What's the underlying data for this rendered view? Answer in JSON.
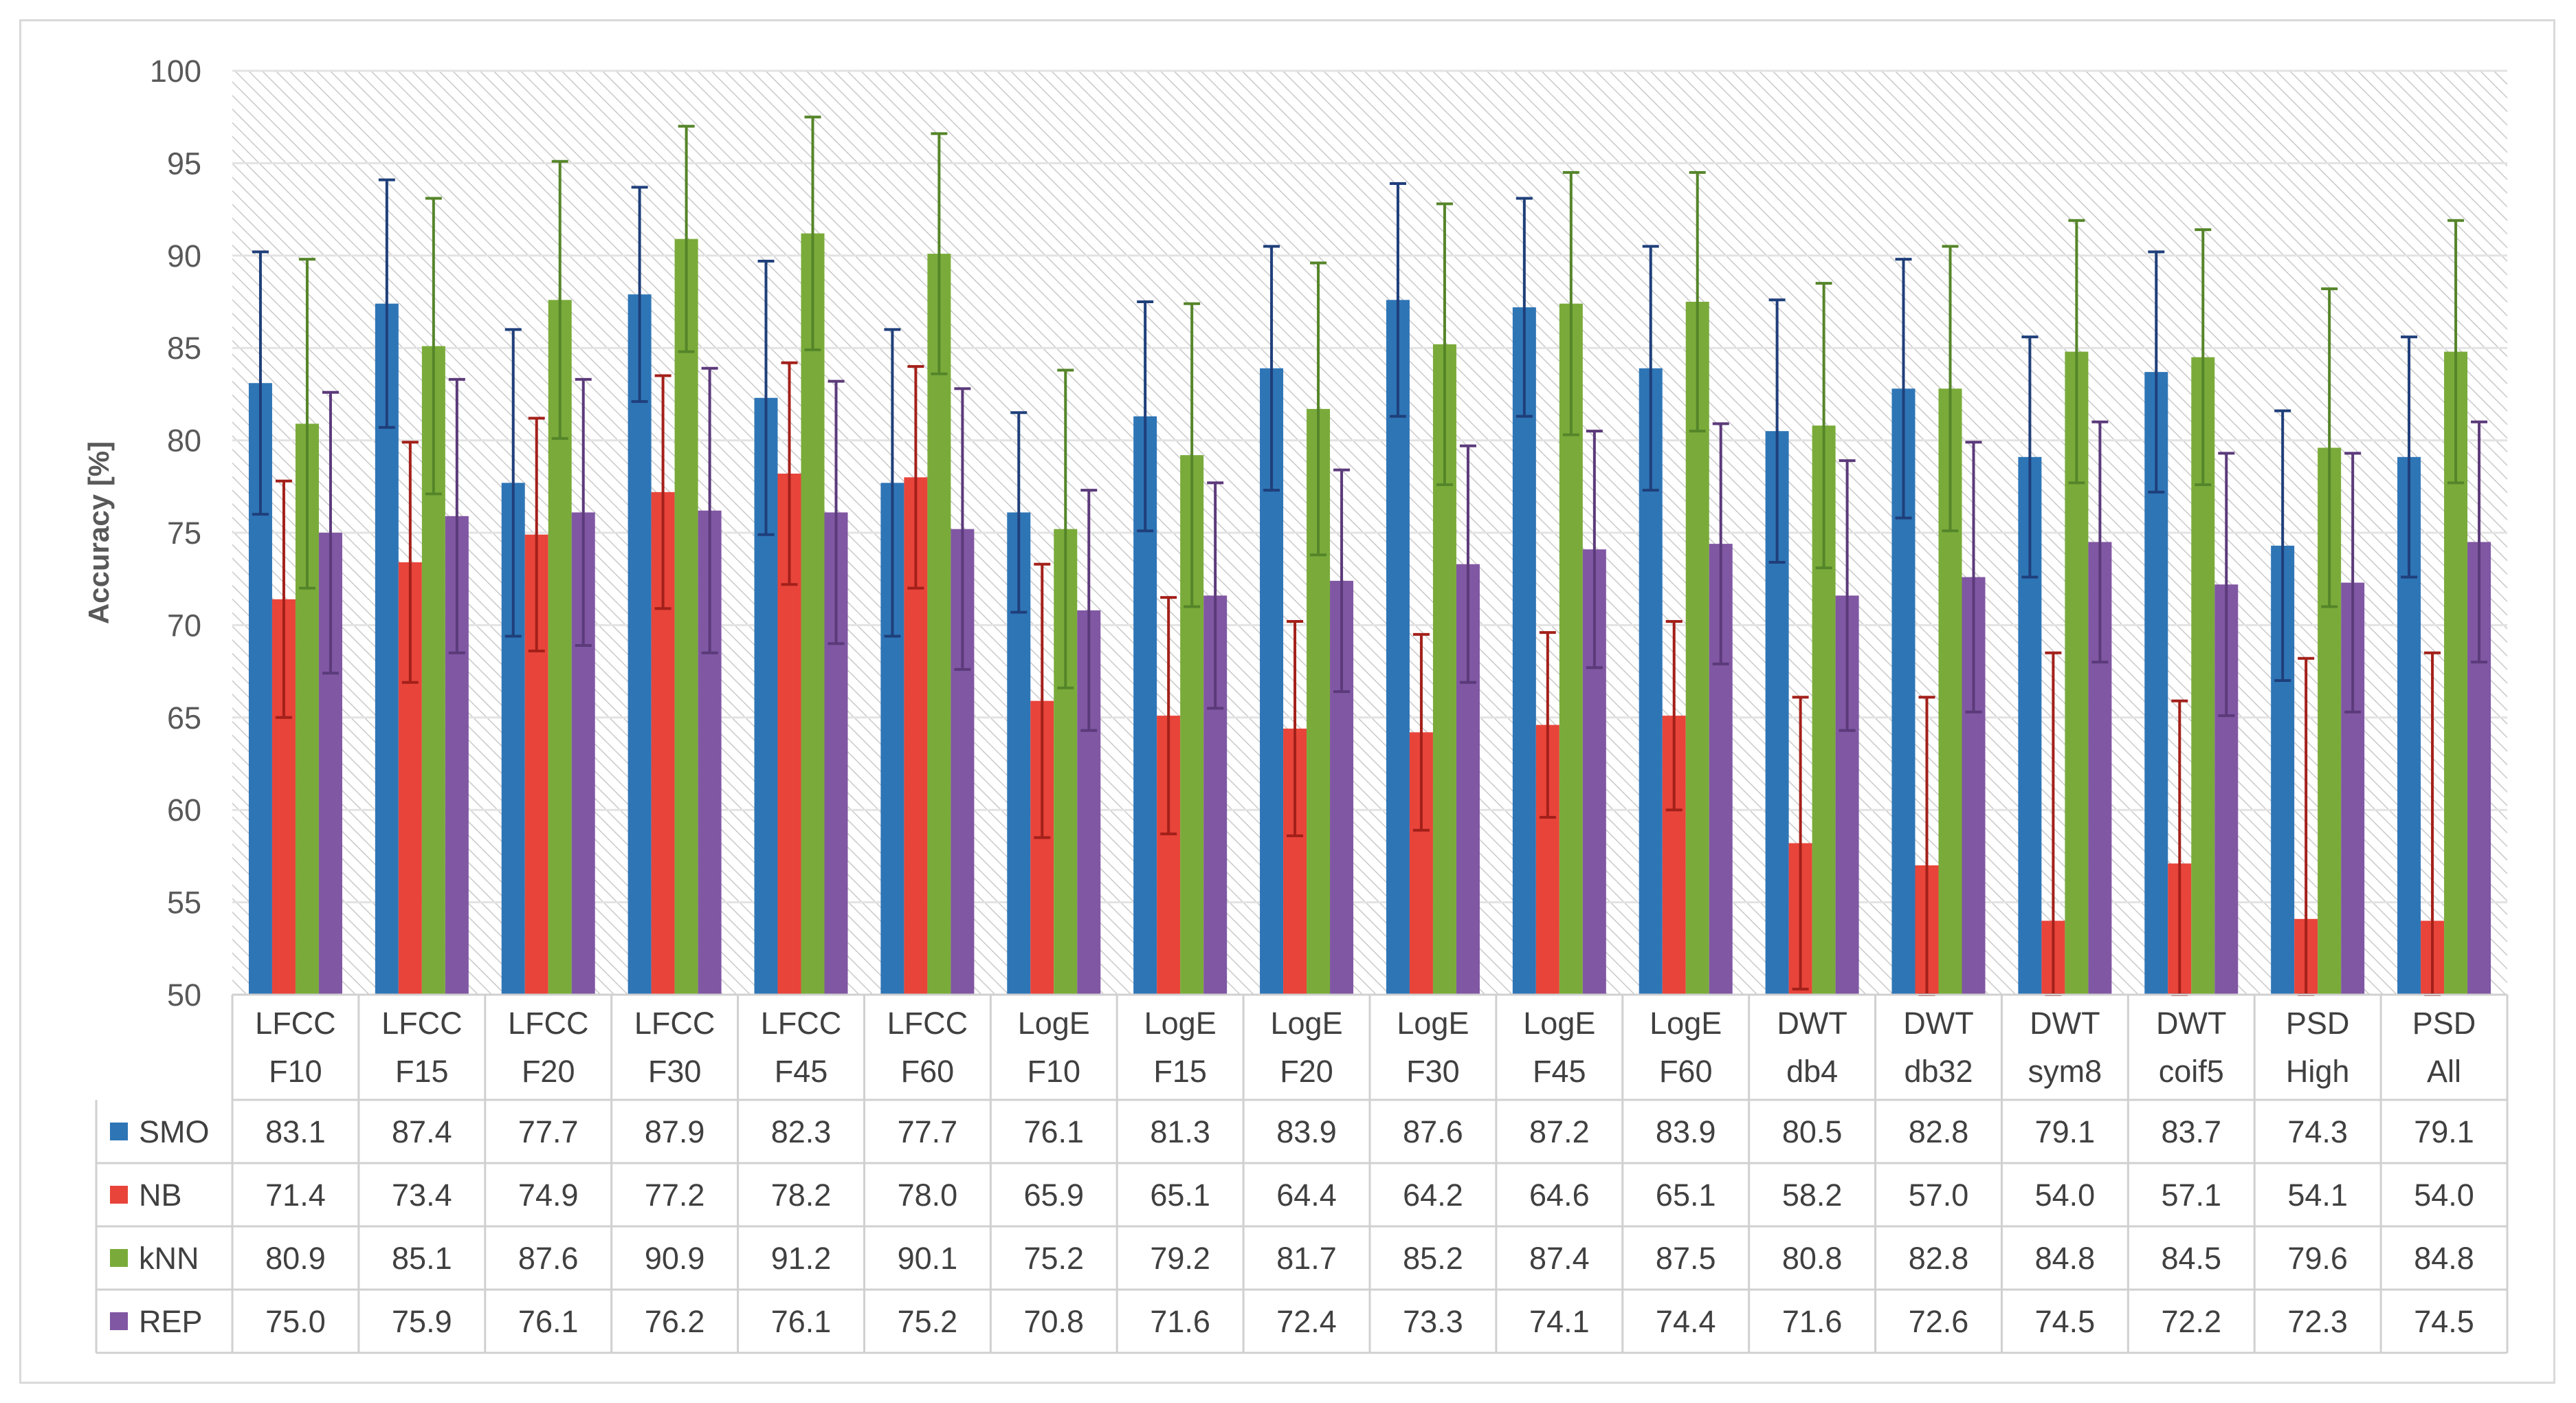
{
  "chart_data": {
    "type": "bar",
    "title": "",
    "xlabel": "",
    "ylabel": "Accuracy [%]",
    "ylim": [
      50,
      100
    ],
    "yticks": [
      "50",
      "55",
      "60",
      "65",
      "70",
      "75",
      "80",
      "85",
      "90",
      "95",
      "100"
    ],
    "grid": true,
    "legend_position": "data-table-left",
    "categories": [
      [
        "LFCC",
        "F10"
      ],
      [
        "LFCC",
        "F15"
      ],
      [
        "LFCC",
        "F20"
      ],
      [
        "LFCC",
        "F30"
      ],
      [
        "LFCC",
        "F45"
      ],
      [
        "LFCC",
        "F60"
      ],
      [
        "LogE",
        "F10"
      ],
      [
        "LogE",
        "F15"
      ],
      [
        "LogE",
        "F20"
      ],
      [
        "LogE",
        "F30"
      ],
      [
        "LogE",
        "F45"
      ],
      [
        "LogE",
        "F60"
      ],
      [
        "DWT",
        "db4"
      ],
      [
        "DWT",
        "db32"
      ],
      [
        "DWT",
        "sym8"
      ],
      [
        "DWT",
        "coif5"
      ],
      [
        "PSD",
        "High"
      ],
      [
        "PSD",
        "All"
      ]
    ],
    "series": [
      {
        "name": "SMO",
        "color": "#2e75b6",
        "error_color": "#1f3f7a",
        "values": [
          83.1,
          87.4,
          77.7,
          87.9,
          82.3,
          77.7,
          76.1,
          81.3,
          83.9,
          87.6,
          87.2,
          83.9,
          80.5,
          82.8,
          79.1,
          83.7,
          74.3,
          79.1
        ],
        "labels": [
          "83.1",
          "87.4",
          "77.7",
          "87.9",
          "82.3",
          "77.7",
          "76.1",
          "81.3",
          "83.9",
          "87.6",
          "87.2",
          "83.9",
          "80.5",
          "82.8",
          "79.1",
          "83.7",
          "74.3",
          "79.1"
        ],
        "error": [
          7.1,
          6.7,
          8.3,
          5.8,
          7.4,
          8.3,
          5.4,
          6.2,
          6.6,
          6.3,
          5.9,
          6.6,
          7.1,
          7.0,
          6.5,
          6.5,
          7.3,
          6.5
        ]
      },
      {
        "name": "NB",
        "color": "#e8443a",
        "error_color": "#a3201a",
        "values": [
          71.4,
          73.4,
          74.9,
          77.2,
          78.2,
          78.0,
          65.9,
          65.1,
          64.4,
          64.2,
          64.6,
          65.1,
          58.2,
          57.0,
          54.0,
          57.1,
          54.1,
          54.0
        ],
        "labels": [
          "71.4",
          "73.4",
          "74.9",
          "77.2",
          "78.2",
          "78.0",
          "65.9",
          "65.1",
          "64.4",
          "64.2",
          "64.6",
          "65.1",
          "58.2",
          "57.0",
          "54.0",
          "57.1",
          "54.1",
          "54.0"
        ],
        "error": [
          6.4,
          6.5,
          6.3,
          6.3,
          6.0,
          6.0,
          7.4,
          6.4,
          5.8,
          5.3,
          5.0,
          5.1,
          7.9,
          9.1,
          14.5,
          8.8,
          14.1,
          14.5
        ]
      },
      {
        "name": "kNN",
        "color": "#7aab3a",
        "error_color": "#55852a",
        "values": [
          80.9,
          85.1,
          87.6,
          90.9,
          91.2,
          90.1,
          75.2,
          79.2,
          81.7,
          85.2,
          87.4,
          87.5,
          80.8,
          82.8,
          84.8,
          84.5,
          79.6,
          84.8
        ],
        "labels": [
          "80.9",
          "85.1",
          "87.6",
          "90.9",
          "91.2",
          "90.1",
          "75.2",
          "79.2",
          "81.7",
          "85.2",
          "87.4",
          "87.5",
          "80.8",
          "82.8",
          "84.8",
          "84.5",
          "79.6",
          "84.8"
        ],
        "error": [
          8.9,
          8.0,
          7.5,
          6.1,
          6.3,
          6.5,
          8.6,
          8.2,
          7.9,
          7.6,
          7.1,
          7.0,
          7.7,
          7.7,
          7.1,
          6.9,
          8.6,
          7.1
        ]
      },
      {
        "name": "REP",
        "color": "#8057a3",
        "error_color": "#5b3a7a",
        "values": [
          75.0,
          75.9,
          76.1,
          76.2,
          76.1,
          75.2,
          70.8,
          71.6,
          72.4,
          73.3,
          74.1,
          74.4,
          71.6,
          72.6,
          74.5,
          72.2,
          72.3,
          74.5
        ],
        "labels": [
          "75.0",
          "75.9",
          "76.1",
          "76.2",
          "76.1",
          "75.2",
          "70.8",
          "71.6",
          "72.4",
          "73.3",
          "74.1",
          "74.4",
          "71.6",
          "72.6",
          "74.5",
          "72.2",
          "72.3",
          "74.5"
        ],
        "error": [
          7.6,
          7.4,
          7.2,
          7.7,
          7.1,
          7.6,
          6.5,
          6.1,
          6.0,
          6.4,
          6.4,
          6.5,
          7.3,
          7.3,
          6.5,
          7.1,
          7.0,
          6.5
        ]
      }
    ]
  }
}
